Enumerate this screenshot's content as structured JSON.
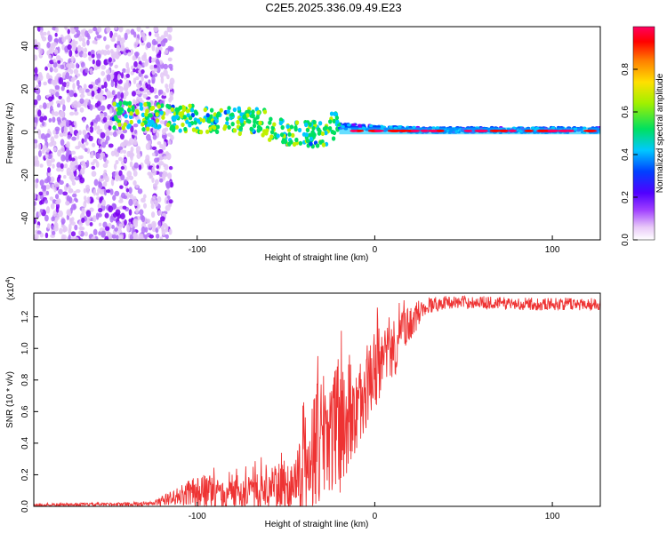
{
  "title": "C2E5.2025.336.09.49.E23",
  "chart_data": [
    {
      "type": "heatmap",
      "title": "C2E5.2025.336.09.49.E23",
      "xlabel": "Height of straight line (km)",
      "ylabel": "Frequency (Hz)",
      "xlim": [
        -192,
        127
      ],
      "ylim": [
        -50,
        49
      ],
      "xticks": [
        -100,
        0,
        100
      ],
      "yticks": [
        -40,
        -20,
        0,
        20,
        40
      ],
      "colorbar": {
        "label": "Normalized spectral amplitude",
        "range": [
          0,
          1
        ],
        "ticks": [
          0.0,
          0.2,
          0.4,
          0.6,
          0.8
        ],
        "colormap": [
          "#f0d8f8",
          "#8000ff",
          "#0040ff",
          "#00c8ff",
          "#00e060",
          "#c0f000",
          "#ffb000",
          "#ff0000",
          "#ff0060"
        ]
      },
      "signal_band": {
        "start_x": -147,
        "center_freq_start": 8,
        "center_freq_end": 1,
        "note": "Broadband noise below x=-115, narrowband line near 0-2 Hz above x=-20"
      }
    },
    {
      "type": "line",
      "xlabel": "Height of straight line (km)",
      "ylabel": "SNR (10 * v/v)",
      "yscale_label": "(x10",
      "yscale_exp": "4",
      "yscale_close": ")",
      "xlim": [
        -192,
        127
      ],
      "ylim": [
        0,
        1.35
      ],
      "xticks": [
        -100,
        0,
        100
      ],
      "yticks": [
        0.0,
        0.2,
        0.4,
        0.6,
        0.8,
        1.0,
        1.2
      ],
      "color": "#ee3333",
      "series": [
        {
          "name": "SNR",
          "envelope": {
            "x": [
              -192,
              -150,
              -125,
              -110,
              -95,
              -85,
              -75,
              -65,
              -55,
              -45,
              -38,
              -32,
              -26,
              -20,
              -14,
              -8,
              -2,
              5,
              12,
              20,
              28,
              40,
              60,
              80,
              100,
              127
            ],
            "level": [
              0.01,
              0.015,
              0.02,
              0.08,
              0.12,
              0.08,
              0.1,
              0.12,
              0.15,
              0.18,
              0.35,
              0.5,
              0.6,
              0.55,
              0.6,
              0.7,
              0.85,
              0.95,
              1.05,
              1.18,
              1.28,
              1.3,
              1.3,
              1.29,
              1.29,
              1.29
            ],
            "spread": [
              0.01,
              0.01,
              0.015,
              0.06,
              0.12,
              0.08,
              0.1,
              0.12,
              0.14,
              0.2,
              0.35,
              0.45,
              0.45,
              0.4,
              0.3,
              0.25,
              0.25,
              0.2,
              0.18,
              0.12,
              0.06,
              0.04,
              0.04,
              0.04,
              0.04,
              0.04
            ]
          }
        }
      ]
    }
  ]
}
